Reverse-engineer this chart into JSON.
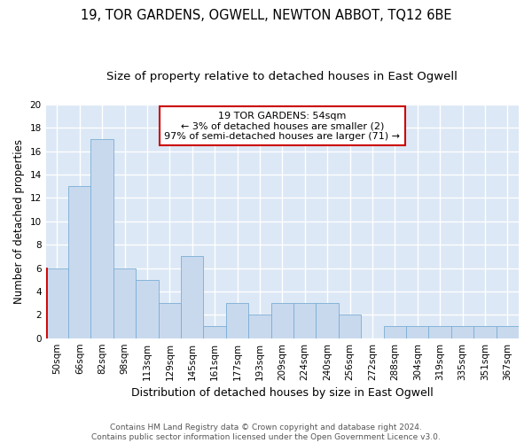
{
  "title": "19, TOR GARDENS, OGWELL, NEWTON ABBOT, TQ12 6BE",
  "subtitle": "Size of property relative to detached houses in East Ogwell",
  "xlabel": "Distribution of detached houses by size in East Ogwell",
  "ylabel": "Number of detached properties",
  "categories": [
    "50sqm",
    "66sqm",
    "82sqm",
    "98sqm",
    "113sqm",
    "129sqm",
    "145sqm",
    "161sqm",
    "177sqm",
    "193sqm",
    "209sqm",
    "224sqm",
    "240sqm",
    "256sqm",
    "272sqm",
    "288sqm",
    "304sqm",
    "319sqm",
    "335sqm",
    "351sqm",
    "367sqm"
  ],
  "values": [
    6,
    13,
    17,
    6,
    5,
    3,
    7,
    1,
    3,
    2,
    3,
    3,
    3,
    2,
    0,
    1,
    1,
    1,
    1,
    1,
    1
  ],
  "bar_color": "#c8d9ee",
  "bar_edge_color": "#7aadd4",
  "highlight_bar_index": 0,
  "highlight_left_line_color": "#cc0000",
  "annotation_text": "19 TOR GARDENS: 54sqm\n← 3% of detached houses are smaller (2)\n97% of semi-detached houses are larger (71) →",
  "annotation_box_edge_color": "#cc0000",
  "ylim": [
    0,
    20
  ],
  "yticks": [
    0,
    2,
    4,
    6,
    8,
    10,
    12,
    14,
    16,
    18,
    20
  ],
  "background_color": "#dce8f5",
  "grid_color": "#ffffff",
  "footer_line1": "Contains HM Land Registry data © Crown copyright and database right 2024.",
  "footer_line2": "Contains public sector information licensed under the Open Government Licence v3.0.",
  "title_fontsize": 10.5,
  "subtitle_fontsize": 9.5,
  "xlabel_fontsize": 9,
  "ylabel_fontsize": 8.5,
  "tick_fontsize": 7.5,
  "annotation_fontsize": 8,
  "footer_fontsize": 6.5
}
